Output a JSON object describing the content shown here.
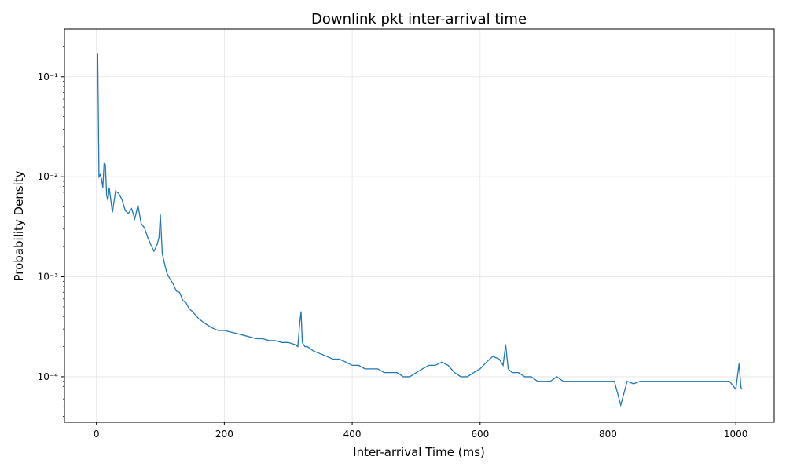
{
  "chart_data": {
    "type": "line",
    "title": "Downlink pkt inter-arrival time",
    "xlabel": "Inter-arrival Time (ms)",
    "ylabel": "Probability Density",
    "x_scale": "linear",
    "y_scale": "log",
    "xlim": [
      -50,
      1060
    ],
    "ylim": [
      3.5e-05,
      0.3
    ],
    "x_ticks": [
      0,
      200,
      400,
      600,
      800,
      1000
    ],
    "x_tick_labels": [
      "0",
      "200",
      "400",
      "600",
      "800",
      "1000"
    ],
    "y_ticks": [
      0.0001,
      0.001,
      0.01,
      0.1
    ],
    "y_tick_labels": [
      "10⁻⁴",
      "10⁻³",
      "10⁻²",
      "10⁻¹"
    ],
    "grid": true,
    "legend": "none",
    "series_color": "#1f77b4",
    "series": [
      {
        "x": [
          2,
          4,
          6,
          8,
          10,
          12,
          14,
          16,
          18,
          20,
          25,
          30,
          35,
          40,
          45,
          50,
          55,
          60,
          65,
          70,
          75,
          80,
          85,
          90,
          95,
          98,
          100,
          103,
          106,
          110,
          115,
          120,
          125,
          130,
          135,
          140,
          145,
          150,
          160,
          170,
          180,
          190,
          200,
          210,
          220,
          230,
          240,
          250,
          260,
          270,
          280,
          290,
          300,
          310,
          315,
          318,
          320,
          322,
          326,
          330,
          340,
          350,
          360,
          370,
          380,
          390,
          400,
          410,
          420,
          430,
          440,
          450,
          460,
          470,
          480,
          490,
          500,
          510,
          520,
          530,
          540,
          550,
          560,
          570,
          580,
          590,
          600,
          610,
          620,
          630,
          636,
          640,
          644,
          650,
          660,
          670,
          680,
          690,
          700,
          710,
          720,
          730,
          740,
          750,
          760,
          770,
          780,
          790,
          800,
          810,
          820,
          830,
          840,
          850,
          860,
          870,
          880,
          890,
          900,
          910,
          920,
          930,
          940,
          950,
          960,
          970,
          980,
          990,
          1000,
          1005,
          1008,
          1010
        ],
        "y": [
          0.17,
          0.01,
          0.0105,
          0.0095,
          0.0078,
          0.0135,
          0.0132,
          0.0065,
          0.0058,
          0.0078,
          0.0044,
          0.0072,
          0.0068,
          0.0059,
          0.0046,
          0.0043,
          0.0048,
          0.0038,
          0.0052,
          0.0034,
          0.0031,
          0.0025,
          0.0021,
          0.0018,
          0.0021,
          0.0025,
          0.0042,
          0.0017,
          0.0014,
          0.0011,
          0.00095,
          0.00085,
          0.00072,
          0.0007,
          0.00058,
          0.00055,
          0.00048,
          0.00045,
          0.00038,
          0.00034,
          0.00031,
          0.00029,
          0.00029,
          0.00028,
          0.00027,
          0.00026,
          0.00025,
          0.00024,
          0.00024,
          0.00023,
          0.00023,
          0.00022,
          0.00022,
          0.00021,
          0.0002,
          0.00035,
          0.00045,
          0.00022,
          0.0002,
          0.0002,
          0.00018,
          0.00017,
          0.00016,
          0.00015,
          0.00015,
          0.00014,
          0.00013,
          0.00013,
          0.00012,
          0.00012,
          0.00012,
          0.00011,
          0.00011,
          0.00011,
          0.0001,
          0.0001,
          0.00011,
          0.00012,
          0.00013,
          0.00013,
          0.00014,
          0.00013,
          0.00011,
          0.0001,
          0.0001,
          0.00011,
          0.00012,
          0.00014,
          0.00016,
          0.00015,
          0.00013,
          0.00021,
          0.00012,
          0.00011,
          0.00011,
          0.0001,
          0.0001,
          9e-05,
          9e-05,
          9e-05,
          0.0001,
          9e-05,
          9e-05,
          9e-05,
          9e-05,
          9e-05,
          9e-05,
          9e-05,
          9e-05,
          9e-05,
          5.2e-05,
          9e-05,
          8.5e-05,
          9e-05,
          9e-05,
          9e-05,
          9e-05,
          9e-05,
          9e-05,
          9e-05,
          9e-05,
          9e-05,
          9e-05,
          9e-05,
          9e-05,
          9e-05,
          9e-05,
          9e-05,
          7.5e-05,
          0.000135,
          7.8e-05,
          7.5e-05
        ]
      }
    ]
  }
}
